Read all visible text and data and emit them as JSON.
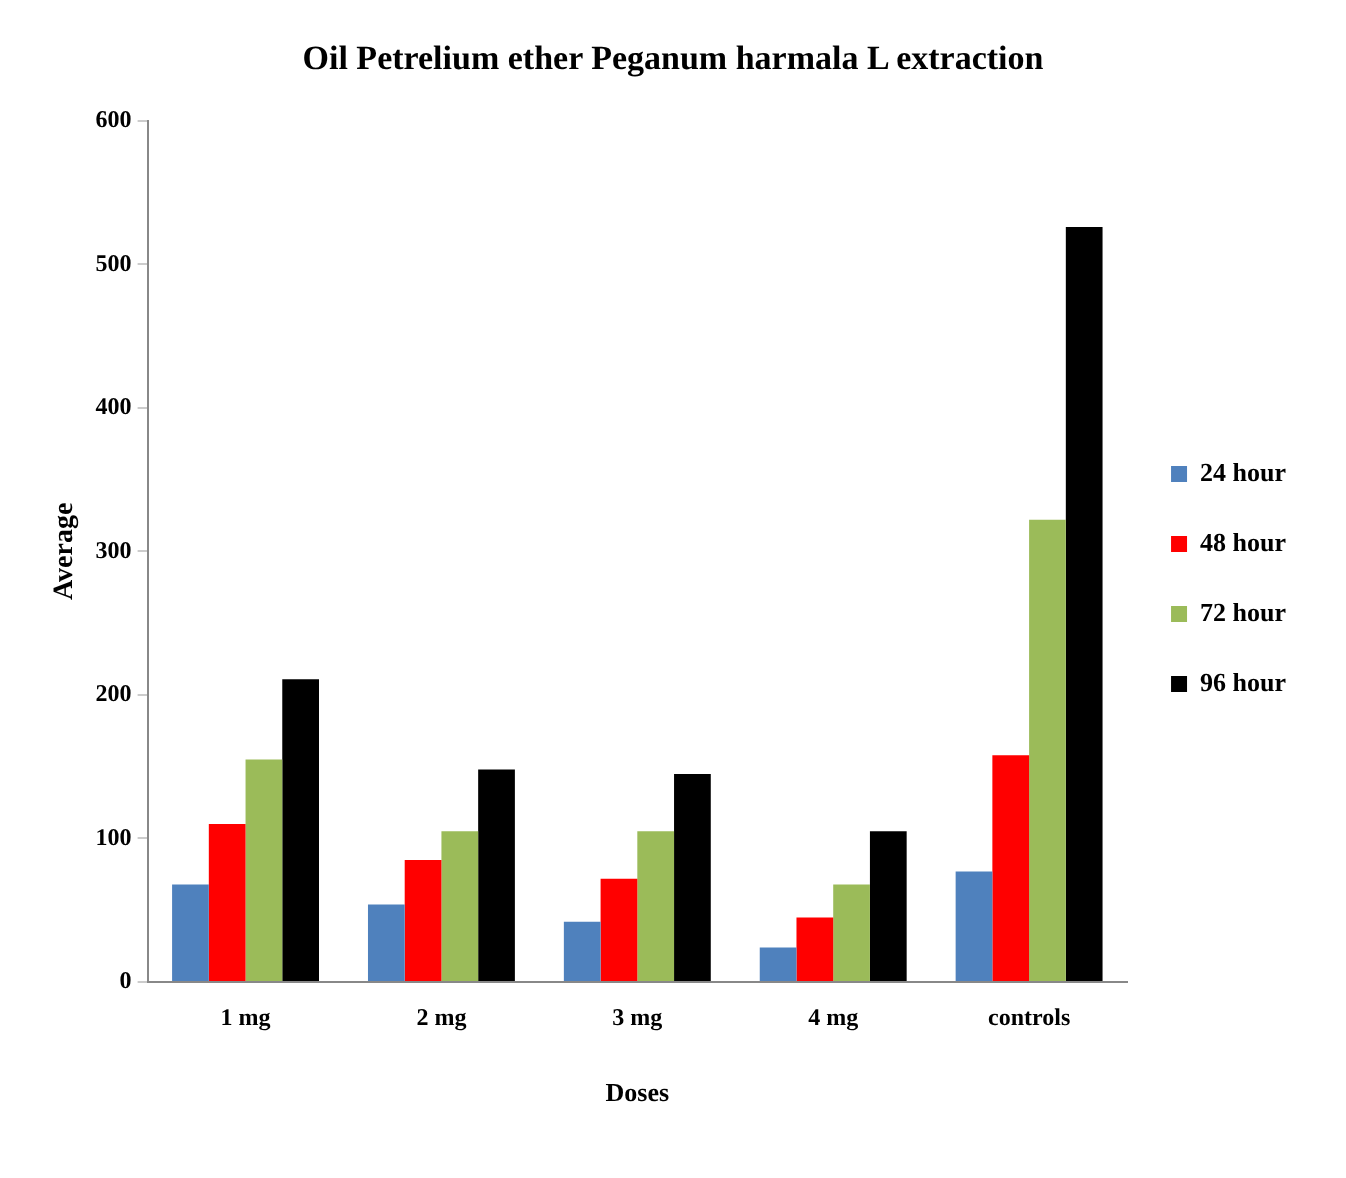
{
  "chart_data": {
    "type": "bar",
    "title": "Oil Petrelium ether Peganum harmala L extraction",
    "xlabel": "Doses",
    "ylabel": "Average",
    "categories": [
      "1 mg",
      "2 mg",
      "3 mg",
      "4 mg",
      "controls"
    ],
    "series": [
      {
        "name": "24 hour",
        "color": "#4f81bd",
        "values": [
          68,
          54,
          42,
          24,
          77
        ]
      },
      {
        "name": "48 hour",
        "color": "#ff0000",
        "values": [
          110,
          85,
          72,
          45,
          158
        ]
      },
      {
        "name": "72 hour",
        "color": "#9bbb59",
        "values": [
          155,
          105,
          105,
          68,
          322
        ]
      },
      {
        "name": "96 hour",
        "color": "#000000",
        "values": [
          211,
          148,
          145,
          105,
          526
        ]
      }
    ],
    "ylim": [
      0,
      600
    ],
    "yticks": [
      0,
      100,
      200,
      300,
      400,
      500,
      600
    ],
    "grid": false,
    "legend": "right"
  }
}
